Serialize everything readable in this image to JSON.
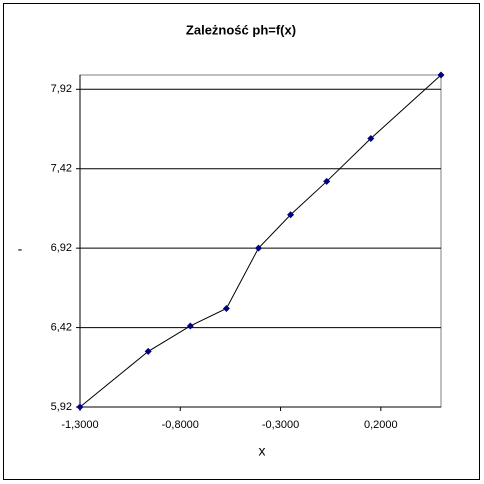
{
  "chart_data": {
    "type": "scatter",
    "title": "Zależność ph=f(x)",
    "x_label": "x",
    "y_label": "-",
    "x": [
      -1.3,
      -0.96,
      -0.75,
      -0.57,
      -0.41,
      -0.25,
      -0.07,
      0.15,
      0.5
    ],
    "series": [
      {
        "name": "ph",
        "color": "#000080",
        "values": [
          5.92,
          6.27,
          6.43,
          6.54,
          6.92,
          7.13,
          7.34,
          7.61,
          8.01
        ]
      }
    ],
    "xlim": [
      -1.3,
      0.5
    ],
    "xticks": [
      {
        "value": -1.3,
        "label": "-1,3000"
      },
      {
        "value": -0.8,
        "label": "-0,8000"
      },
      {
        "value": -0.3,
        "label": "-0,3000"
      },
      {
        "value": 0.2,
        "label": "0,2000"
      }
    ],
    "ylim": [
      5.92,
      8.01
    ],
    "yticks": [
      {
        "value": 5.92,
        "label": "5,92"
      },
      {
        "value": 6.42,
        "label": "6,42"
      },
      {
        "value": 6.92,
        "label": "6,92"
      },
      {
        "value": 7.42,
        "label": "7,42"
      },
      {
        "value": 7.92,
        "label": "7,92"
      }
    ],
    "grid": true
  }
}
